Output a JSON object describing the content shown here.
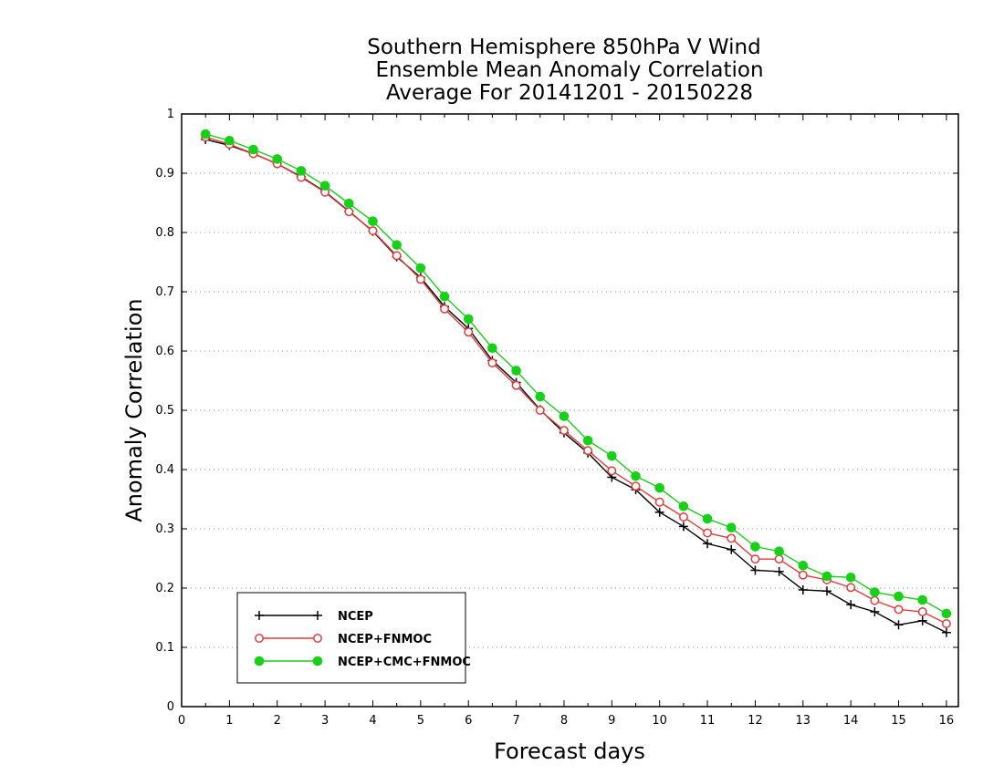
{
  "chart_data": {
    "type": "line",
    "title_lines": [
      "Southern Hemisphere 850hPa V Wind",
      "Ensemble Mean Anomaly Correlation",
      "Average For 20141201 - 20150228"
    ],
    "xlabel": "Forecast days",
    "ylabel": "Anomaly Correlation",
    "xlim": [
      0,
      16.25
    ],
    "ylim": [
      0,
      1
    ],
    "x_ticks": [
      "0",
      "1",
      "2",
      "3",
      "4",
      "5",
      "6",
      "7",
      "8",
      "9",
      "10",
      "11",
      "12",
      "13",
      "14",
      "15",
      "16"
    ],
    "y_ticks": [
      "0",
      "0.1",
      "0.2",
      "0.3",
      "0.4",
      "0.5",
      "0.6",
      "0.7",
      "0.8",
      "0.9",
      "1"
    ],
    "grid": true,
    "legend_position": "bottom-left",
    "x": [
      0.5,
      1,
      1.5,
      2,
      2.5,
      3,
      3.5,
      4,
      4.5,
      5,
      5.5,
      6,
      6.5,
      7,
      7.5,
      8,
      8.5,
      9,
      9.5,
      10,
      10.5,
      11,
      11.5,
      12,
      12.5,
      13,
      13.5,
      14,
      14.5,
      15,
      15.5,
      16
    ],
    "series": [
      {
        "name": "NCEP",
        "color": "#000000",
        "marker": "plus",
        "values": [
          0.957,
          0.947,
          0.933,
          0.916,
          0.894,
          0.869,
          0.836,
          0.802,
          0.759,
          0.724,
          0.675,
          0.638,
          0.584,
          0.547,
          0.501,
          0.462,
          0.428,
          0.387,
          0.366,
          0.328,
          0.304,
          0.275,
          0.265,
          0.23,
          0.228,
          0.197,
          0.195,
          0.172,
          0.16,
          0.138,
          0.145,
          0.125
        ]
      },
      {
        "name": "NCEP+FNMOC",
        "color": "#e03c3c",
        "marker": "open-circle",
        "values": [
          0.961,
          0.949,
          0.933,
          0.916,
          0.893,
          0.868,
          0.835,
          0.803,
          0.761,
          0.721,
          0.671,
          0.632,
          0.58,
          0.542,
          0.5,
          0.466,
          0.432,
          0.398,
          0.372,
          0.345,
          0.32,
          0.293,
          0.284,
          0.249,
          0.249,
          0.222,
          0.214,
          0.201,
          0.179,
          0.164,
          0.16,
          0.14
        ]
      },
      {
        "name": "NCEP+CMC+FNMOC",
        "color": "#18d018",
        "marker": "filled-circle",
        "values": [
          0.966,
          0.955,
          0.94,
          0.924,
          0.904,
          0.879,
          0.849,
          0.819,
          0.779,
          0.74,
          0.692,
          0.654,
          0.605,
          0.567,
          0.523,
          0.49,
          0.449,
          0.423,
          0.389,
          0.369,
          0.338,
          0.317,
          0.302,
          0.27,
          0.262,
          0.238,
          0.22,
          0.218,
          0.193,
          0.186,
          0.18,
          0.157
        ]
      }
    ]
  }
}
